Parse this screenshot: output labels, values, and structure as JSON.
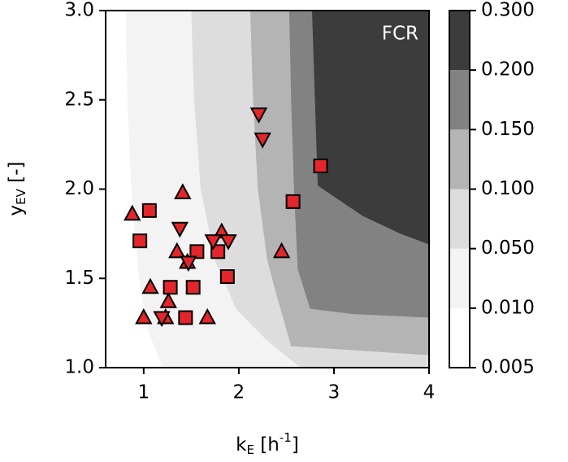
{
  "chart_data": {
    "type": "contour",
    "annotation": "FCR",
    "xlabel": [
      "k",
      "E",
      " [h",
      "-1",
      "]"
    ],
    "ylabel": [
      "y",
      "EV",
      " [-]"
    ],
    "xlim": [
      0.6,
      4
    ],
    "ylim": [
      1.0,
      3.0
    ],
    "xticks": [
      1,
      2,
      3,
      4
    ],
    "yticks": [
      {
        "value": 1.0,
        "label": "1.0"
      },
      {
        "value": 1.5,
        "label": "1.5"
      },
      {
        "value": 2.0,
        "label": "2.0"
      },
      {
        "value": 2.5,
        "label": "2.5"
      },
      {
        "value": 3.0,
        "label": "3.0"
      }
    ],
    "zticks": [
      {
        "value": 0.005,
        "label": "0.005"
      },
      {
        "value": 0.01,
        "label": "0.010"
      },
      {
        "value": 0.05,
        "label": "0.050"
      },
      {
        "value": 0.1,
        "label": "0.100"
      },
      {
        "value": 0.15,
        "label": "0.150"
      },
      {
        "value": 0.2,
        "label": "0.200"
      },
      {
        "value": 0.3,
        "label": "0.300"
      }
    ],
    "band_colors": [
      "#ffffff",
      "#f3f3f3",
      "#dddddd",
      "#b4b4b4",
      "#828282",
      "#3c3c3c"
    ],
    "contours": [
      {
        "x": [
          0.81,
          0.83,
          0.87,
          0.95,
          1.05,
          1.2
        ],
        "y": [
          3.0,
          2.5,
          2.0,
          1.5,
          1.2,
          1.0
        ]
      },
      {
        "x": [
          1.5,
          1.53,
          1.6,
          1.75,
          1.97,
          2.3,
          2.65
        ],
        "y": [
          3.0,
          2.5,
          2.0,
          1.6,
          1.33,
          1.15,
          1.0
        ]
      },
      {
        "x": [
          2.12,
          2.15,
          2.2,
          2.3,
          2.4,
          2.55,
          4
        ],
        "y": [
          3.0,
          2.5,
          2.0,
          1.6,
          1.4,
          1.12,
          1.07
        ]
      },
      {
        "x": [
          2.53,
          2.55,
          2.58,
          2.62,
          2.75,
          3.2,
          4
        ],
        "y": [
          3.0,
          2.5,
          2.0,
          1.55,
          1.33,
          1.3,
          1.28
        ]
      },
      {
        "x": [
          2.77,
          2.8,
          2.83,
          3.3,
          3.7,
          4
        ],
        "y": [
          3.0,
          2.5,
          2.02,
          1.85,
          1.75,
          1.69
        ]
      }
    ],
    "series": [
      {
        "marker": "square",
        "color": "#e2262b",
        "x": [
          1.06,
          0.96,
          1.56,
          1.78,
          1.88,
          1.28,
          1.52,
          1.44,
          2.57,
          2.86
        ],
        "y": [
          1.88,
          1.71,
          1.65,
          1.65,
          1.51,
          1.45,
          1.45,
          1.28,
          1.93,
          2.13
        ]
      },
      {
        "marker": "triangle-up",
        "color": "#e2262b",
        "x": [
          0.88,
          1.41,
          1.35,
          1.46,
          1.82,
          1.07,
          1.26,
          1.0,
          1.23,
          1.67,
          2.45
        ],
        "y": [
          1.86,
          1.98,
          1.65,
          1.59,
          1.76,
          1.45,
          1.37,
          1.28,
          1.28,
          1.28,
          1.65
        ]
      },
      {
        "marker": "triangle-down",
        "color": "#e2262b",
        "x": [
          2.21,
          2.25,
          1.38,
          1.73,
          1.89,
          1.19,
          1.47
        ],
        "y": [
          2.42,
          2.28,
          1.78,
          1.71,
          1.71,
          1.28,
          1.59
        ]
      }
    ]
  }
}
